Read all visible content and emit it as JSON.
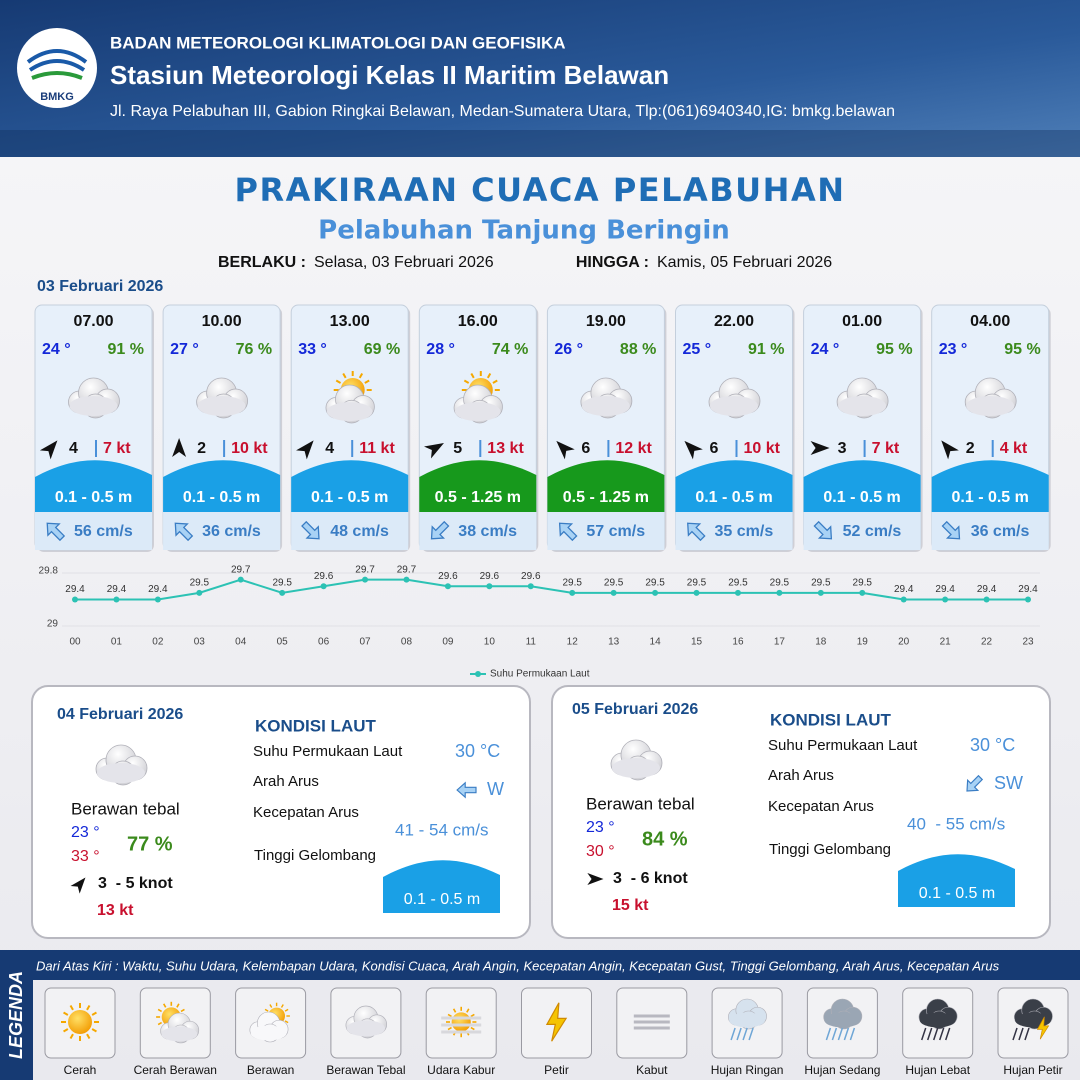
{
  "header": {
    "logo": "BMKG",
    "agency": "BADAN METEOROLOGI KLIMATOLOGI DAN GEOFISIKA",
    "station": "Stasiun Meteorologi Kelas II Maritim Belawan",
    "address": "Jl. Raya Pelabuhan III, Gabion Ringkai Belawan, Medan-Sumatera Utara, Tlp:(061)6940340,IG: bmkg.belawan"
  },
  "title": "PRAKIRAAN CUACA PELABUHAN",
  "subtitle": "Pelabuhan Tanjung Beringin",
  "validity": {
    "from_label": "BERLAKU :",
    "from": "Selasa, 03 Februari 2026",
    "to_label": "HINGGA :",
    "to": "Kamis, 05 Februari 2026"
  },
  "day1": "03 Februari 2026",
  "forecasts": [
    {
      "time": "07.00",
      "temp": "24 °",
      "humidity": "91 %",
      "wind": "4",
      "gust": "7 kt",
      "wave": "0.1 - 0.5 m",
      "wave_color": "#1aa0e6",
      "current": "56 cm/s"
    },
    {
      "time": "10.00",
      "temp": "27 °",
      "humidity": "76 %",
      "wind": "2",
      "gust": "10 kt",
      "wave": "0.1 - 0.5 m",
      "wave_color": "#1aa0e6",
      "current": "36 cm/s"
    },
    {
      "time": "13.00",
      "temp": "33 °",
      "humidity": "69 %",
      "wind": "4",
      "gust": "11 kt",
      "wave": "0.1 - 0.5 m",
      "wave_color": "#1aa0e6",
      "current": "48 cm/s"
    },
    {
      "time": "16.00",
      "temp": "28 °",
      "humidity": "74 %",
      "wind": "5",
      "gust": "13 kt",
      "wave": "0.5 - 1.25 m",
      "wave_color": "#17991c",
      "current": "38 cm/s"
    },
    {
      "time": "19.00",
      "temp": "26 °",
      "humidity": "88 %",
      "wind": "6",
      "gust": "12 kt",
      "wave": "0.5 - 1.25 m",
      "wave_color": "#17991c",
      "current": "57 cm/s"
    },
    {
      "time": "22.00",
      "temp": "25 °",
      "humidity": "91 %",
      "wind": "6",
      "gust": "10 kt",
      "wave": "0.1 - 0.5 m",
      "wave_color": "#1aa0e6",
      "current": "35 cm/s"
    },
    {
      "time": "01.00",
      "temp": "24 °",
      "humidity": "95 %",
      "wind": "3",
      "gust": "7 kt",
      "wave": "0.1 - 0.5 m",
      "wave_color": "#1aa0e6",
      "current": "52 cm/s"
    },
    {
      "time": "04.00",
      "temp": "23 °",
      "humidity": "95 %",
      "wind": "2",
      "gust": "4 kt",
      "wave": "0.1 - 0.5 m",
      "wave_color": "#1aa0e6",
      "current": "36 cm/s"
    }
  ],
  "chart_data": {
    "type": "line",
    "categories": [
      "00",
      "01",
      "02",
      "03",
      "04",
      "05",
      "06",
      "07",
      "08",
      "09",
      "10",
      "11",
      "12",
      "13",
      "14",
      "15",
      "16",
      "17",
      "18",
      "19",
      "20",
      "21",
      "22",
      "23"
    ],
    "series": [
      {
        "name": "Suhu Permukaan Laut",
        "color": "#2cc2b4",
        "values": [
          29.4,
          29.4,
          29.4,
          29.5,
          29.7,
          29.5,
          29.6,
          29.7,
          29.7,
          29.6,
          29.6,
          29.6,
          29.5,
          29.5,
          29.5,
          29.5,
          29.5,
          29.5,
          29.5,
          29.5,
          29.4,
          29.4,
          29.4,
          29.4
        ]
      }
    ],
    "ylim": [
      29,
      29.8
    ],
    "yticks": [
      29,
      29.8
    ],
    "legend": "bottom"
  },
  "days": [
    {
      "date": "04 Februari 2026",
      "condition": "Berawan tebal",
      "temp_min": "23 °",
      "temp_max": "33 °",
      "humidity": "77 %",
      "wind": "3  - 5 knot",
      "gust": "13 kt",
      "heading": "KONDISI LAUT",
      "sst_label": "Suhu Permukaan Laut",
      "sst": "30 °C",
      "dir_label": "Arah Arus",
      "dir": "W",
      "speed_label": "Kecepatan Arus",
      "speed": "41 - 54 cm/s",
      "wave_label": "Tinggi Gelombang",
      "wave": "0.1 - 0.5 m"
    },
    {
      "date": "05 Februari 2026",
      "condition": "Berawan tebal",
      "temp_min": "23 °",
      "temp_max": "30 °",
      "humidity": "84 %",
      "wind": "3  - 6 knot",
      "gust": "15 kt",
      "heading": "KONDISI LAUT",
      "sst_label": "Suhu Permukaan Laut",
      "sst": "30 °C",
      "dir_label": "Arah Arus",
      "dir": "SW",
      "speed_label": "Kecepatan Arus",
      "speed": "40  - 55 cm/s",
      "wave_label": "Tinggi Gelombang",
      "wave": "0.1 - 0.5 m"
    }
  ],
  "legend": {
    "label": "LEGENDA",
    "description": "Dari Atas Kiri : Waktu, Suhu Udara, Kelembapan Udara, Kondisi Cuaca, Arah Angin, Kecepatan Angin, Kecepatan Gust, Tinggi Gelombang, Arah Arus, Kecepatan Arus",
    "items": [
      "Cerah",
      "Cerah Berawan",
      "Berawan",
      "Berawan Tebal",
      "Udara Kabur",
      "Petir",
      "Kabut",
      "Hujan Ringan",
      "Hujan Sedang",
      "Hujan Lebat",
      "Hujan Petir"
    ]
  }
}
